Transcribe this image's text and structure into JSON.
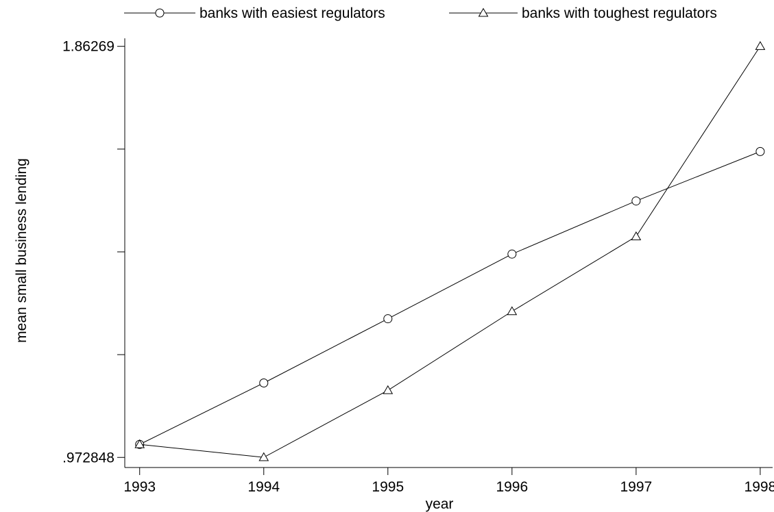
{
  "chart_data": {
    "type": "line",
    "xlabel": "year",
    "ylabel": "mean small business lending",
    "x": [
      1993,
      1994,
      1995,
      1996,
      1997,
      1998
    ],
    "xlim": [
      1992.88,
      1998.1
    ],
    "ylim": [
      0.951,
      1.88
    ],
    "x_ticks": [
      {
        "value": 1993,
        "label": "1993"
      },
      {
        "value": 1994,
        "label": "1994"
      },
      {
        "value": 1995,
        "label": "1995"
      },
      {
        "value": 1996,
        "label": "1996"
      },
      {
        "value": 1997,
        "label": "1997"
      },
      {
        "value": 1998,
        "label": "1998"
      }
    ],
    "y_ticks": [
      {
        "value": 0.972848,
        "label": ".972848"
      },
      {
        "value": 1.195309,
        "label": ""
      },
      {
        "value": 1.417769,
        "label": ""
      },
      {
        "value": 1.64023,
        "label": ""
      },
      {
        "value": 1.86269,
        "label": "1.86269"
      }
    ],
    "grid": false,
    "legend_position": "top",
    "series": [
      {
        "name": "banks with easiest regulators",
        "marker": "circle",
        "color": "#000000",
        "values": [
          1.001,
          1.134,
          1.273,
          1.413,
          1.528,
          1.635
        ]
      },
      {
        "name": "banks with toughest regulators",
        "marker": "triangle",
        "color": "#000000",
        "values": [
          1.001,
          0.973,
          1.118,
          1.289,
          1.451,
          1.863
        ]
      }
    ]
  }
}
